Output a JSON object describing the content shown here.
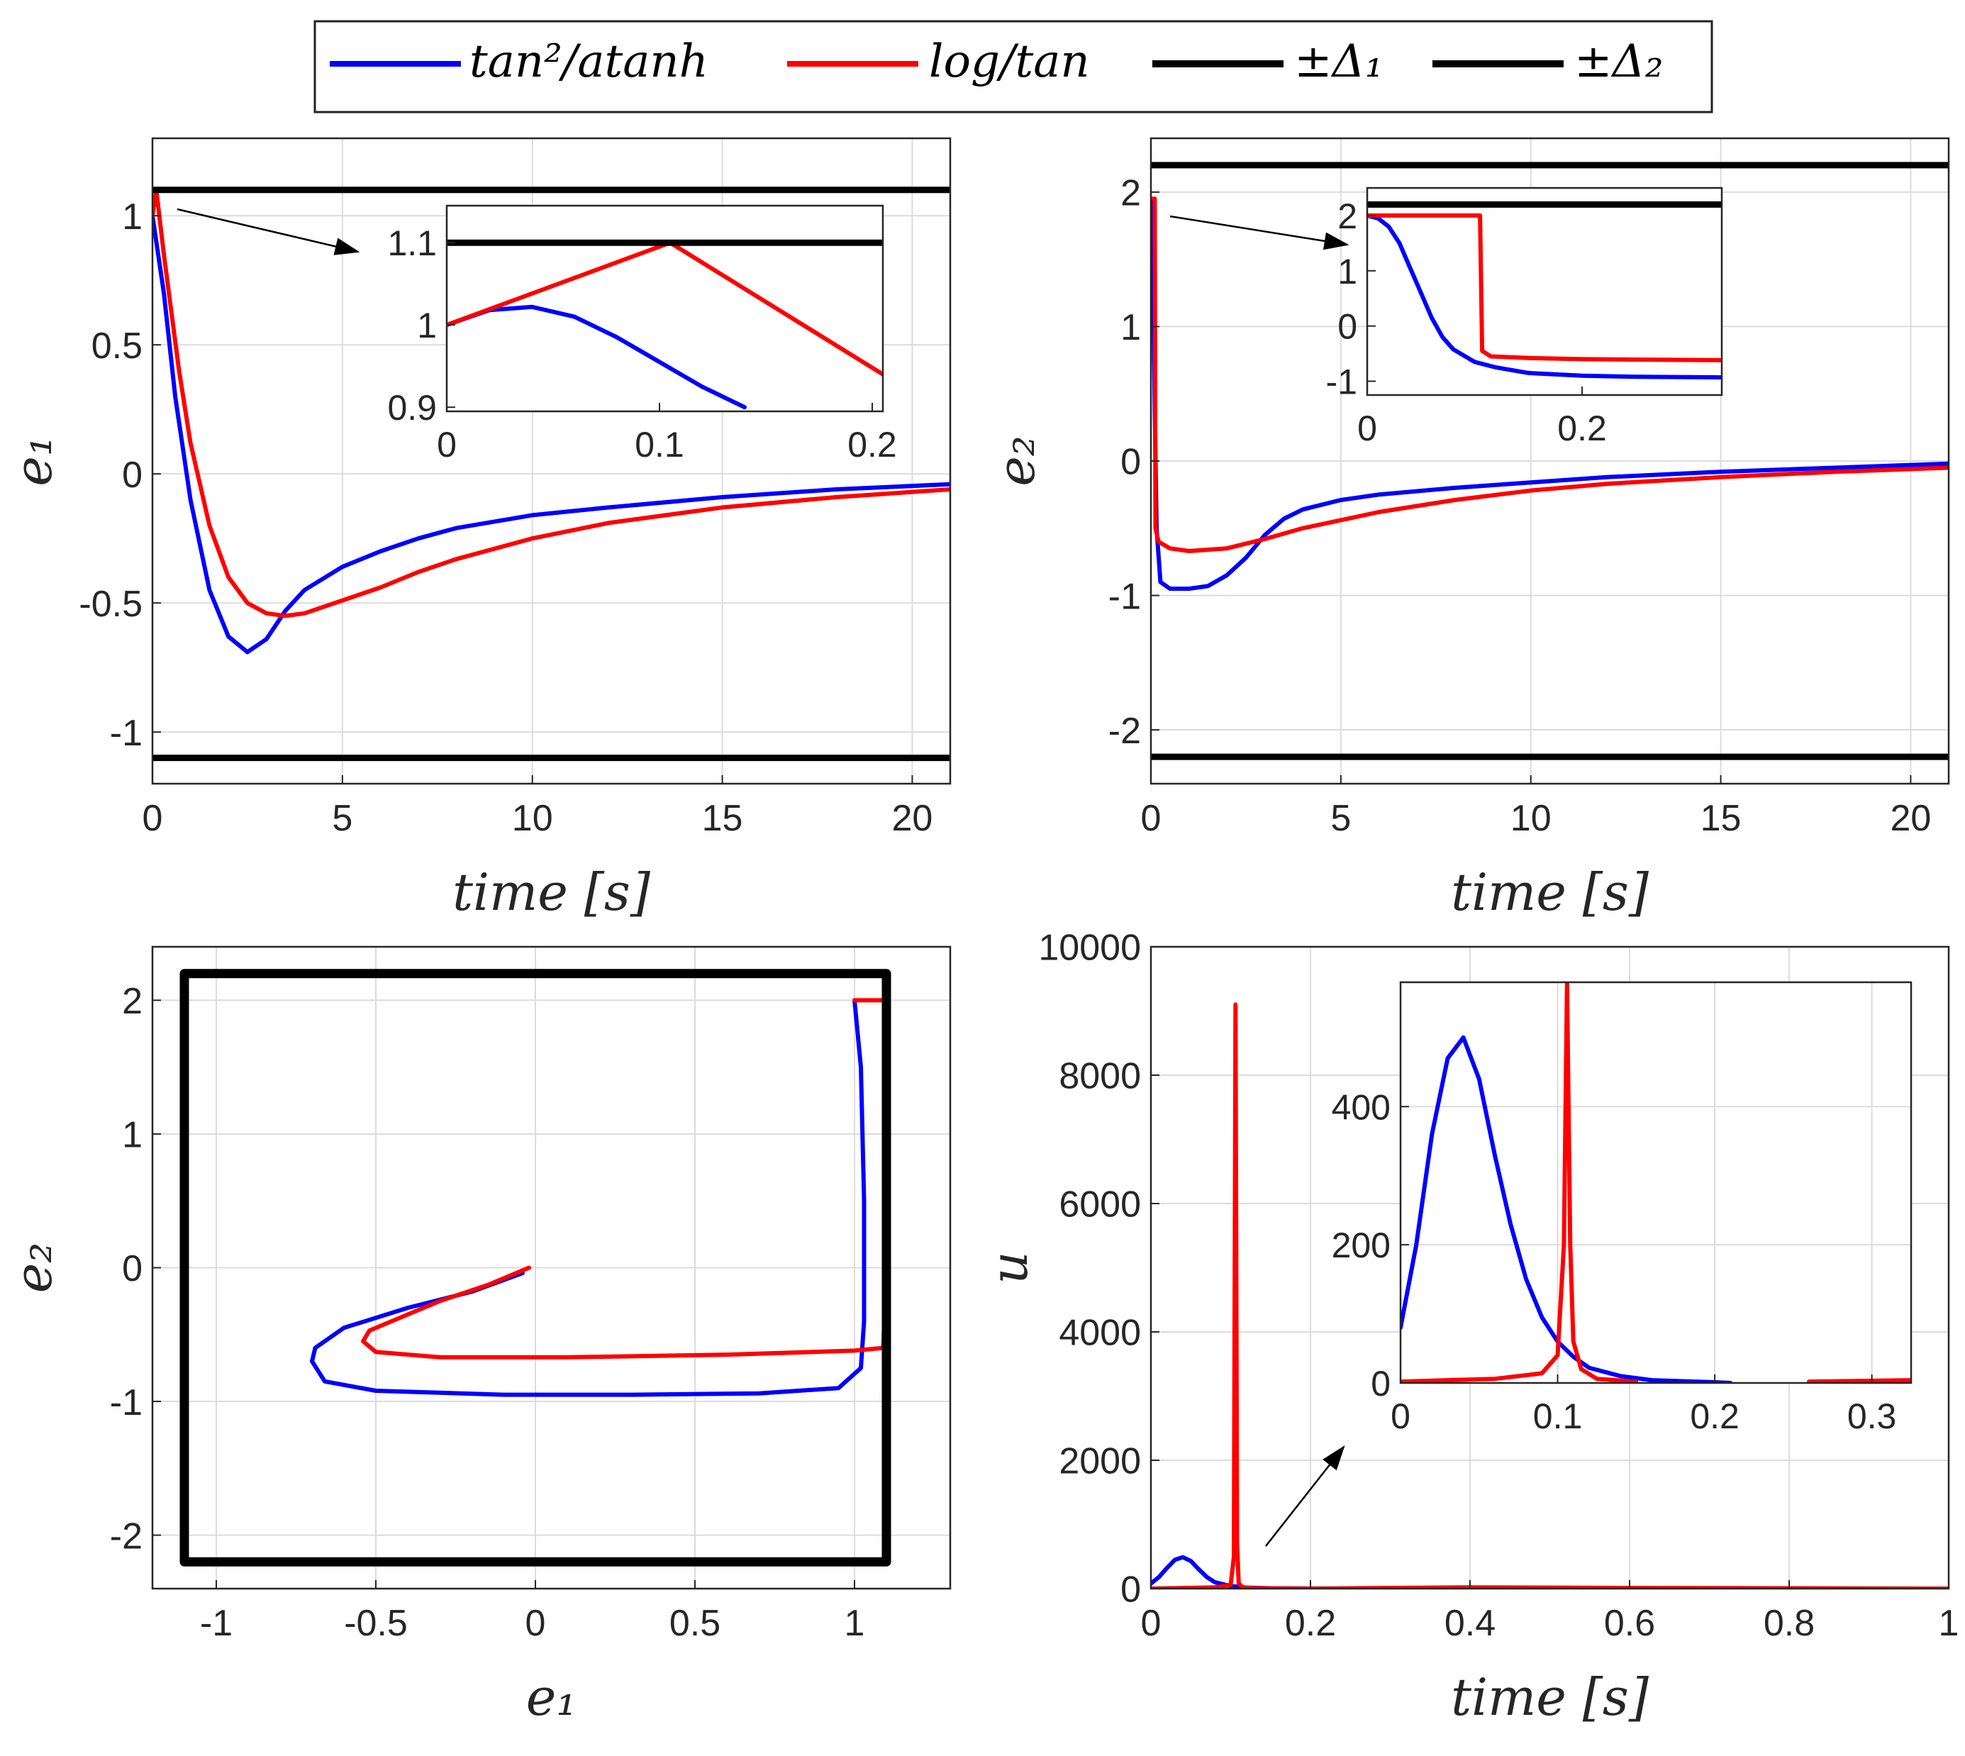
{
  "legend": {
    "entries": [
      {
        "label": "tan²/atanh",
        "color": "#0000ff"
      },
      {
        "label": "log/tan",
        "color": "#ff0000"
      },
      {
        "label": "±Δ₁",
        "color": "#000000"
      },
      {
        "label": "±Δ₂",
        "color": "#000000"
      }
    ]
  },
  "chart_data": [
    {
      "id": "e1",
      "type": "line",
      "title": "",
      "xlabel": "time [s]",
      "ylabel": "e₁",
      "xlim": [
        0,
        21
      ],
      "ylim": [
        -1.2,
        1.3
      ],
      "xticks": [
        0,
        5,
        10,
        15,
        20
      ],
      "xtick_labels": [
        "0",
        "5",
        "10",
        "15",
        "20"
      ],
      "yticks": [
        -1,
        -0.5,
        0,
        0.5,
        1
      ],
      "ytick_labels": [
        "-1",
        "-0.5",
        "0",
        "0.5",
        "1"
      ],
      "grid": true,
      "series": [
        {
          "name": "tan²/atanh",
          "color": "#0000ff",
          "x": [
            0,
            0.3,
            0.6,
            1.0,
            1.5,
            2.0,
            2.5,
            3.0,
            3.5,
            4.0,
            5.0,
            6.0,
            7.0,
            8.0,
            10.0,
            12.0,
            15.0,
            18.0,
            21.0
          ],
          "y": [
            1.0,
            0.7,
            0.3,
            -0.1,
            -0.45,
            -0.63,
            -0.69,
            -0.64,
            -0.53,
            -0.45,
            -0.36,
            -0.3,
            -0.25,
            -0.21,
            -0.16,
            -0.13,
            -0.09,
            -0.06,
            -0.04
          ]
        },
        {
          "name": "log/tan",
          "color": "#ff0000",
          "x": [
            0,
            0.1,
            0.3,
            0.7,
            1.0,
            1.5,
            2.0,
            2.5,
            3.0,
            3.5,
            4.0,
            5.0,
            6.0,
            7.0,
            8.0,
            10.0,
            12.0,
            15.0,
            18.0,
            21.0
          ],
          "y": [
            1.0,
            1.1,
            0.85,
            0.4,
            0.12,
            -0.2,
            -0.4,
            -0.5,
            -0.54,
            -0.55,
            -0.54,
            -0.49,
            -0.44,
            -0.38,
            -0.33,
            -0.25,
            -0.19,
            -0.13,
            -0.09,
            -0.06
          ]
        },
        {
          "name": "+Δ₁",
          "color": "#000000",
          "x": [
            0,
            21
          ],
          "y": [
            1.1,
            1.1
          ]
        },
        {
          "name": "-Δ₁",
          "color": "#000000",
          "x": [
            0,
            21
          ],
          "y": [
            -1.1,
            -1.1
          ]
        }
      ],
      "annotation": "arrow from (0.7, 1.03) to (5.4, 0.87)",
      "inset": {
        "xlim": [
          0,
          0.205
        ],
        "ylim": [
          0.895,
          1.145
        ],
        "xticks": [
          0,
          0.1,
          0.2
        ],
        "xtick_labels": [
          "0",
          "0.1",
          "0.2"
        ],
        "yticks": [
          0.9,
          1,
          1.1
        ],
        "ytick_labels": [
          "0.9",
          "1",
          "1.1"
        ],
        "series": [
          {
            "name": "tan²/atanh",
            "color": "#0000ff",
            "x": [
              0,
              0.02,
              0.04,
              0.06,
              0.08,
              0.1,
              0.12,
              0.14
            ],
            "y": [
              1.0,
              1.018,
              1.022,
              1.01,
              0.985,
              0.955,
              0.925,
              0.9
            ]
          },
          {
            "name": "log/tan",
            "color": "#ff0000",
            "x": [
              0,
              0.105,
              0.205
            ],
            "y": [
              1.0,
              1.1,
              0.94
            ]
          },
          {
            "name": "Δ₁",
            "color": "#000000",
            "x": [
              0,
              0.205
            ],
            "y": [
              1.1,
              1.1
            ]
          }
        ]
      }
    },
    {
      "id": "e2",
      "type": "line",
      "title": "",
      "xlabel": "time [s]",
      "ylabel": "e₂",
      "xlim": [
        0,
        21
      ],
      "ylim": [
        -2.4,
        2.4
      ],
      "xticks": [
        0,
        5,
        10,
        15,
        20
      ],
      "xtick_labels": [
        "0",
        "5",
        "10",
        "15",
        "20"
      ],
      "yticks": [
        -2,
        -1,
        0,
        1,
        2
      ],
      "ytick_labels": [
        "-2",
        "-1",
        "0",
        "1",
        "2"
      ],
      "grid": true,
      "series": [
        {
          "name": "tan²/atanh",
          "color": "#0000ff",
          "x": [
            0,
            0.05,
            0.1,
            0.15,
            0.25,
            0.5,
            1.0,
            1.5,
            2.0,
            2.5,
            3.0,
            3.5,
            4.0,
            5.0,
            6.0,
            8.0,
            10.0,
            12.0,
            15.0,
            18.0,
            21.0
          ],
          "y": [
            1.95,
            1.5,
            0.4,
            -0.5,
            -0.9,
            -0.95,
            -0.95,
            -0.93,
            -0.85,
            -0.72,
            -0.55,
            -0.43,
            -0.36,
            -0.29,
            -0.25,
            -0.2,
            -0.16,
            -0.12,
            -0.08,
            -0.05,
            -0.02
          ]
        },
        {
          "name": "log/tan",
          "color": "#ff0000",
          "x": [
            0,
            0.1,
            0.12,
            0.2,
            0.5,
            1.0,
            2.0,
            3.0,
            4.0,
            6.0,
            8.0,
            10.0,
            12.0,
            15.0,
            18.0,
            21.0
          ],
          "y": [
            1.95,
            1.95,
            -0.5,
            -0.6,
            -0.65,
            -0.67,
            -0.65,
            -0.58,
            -0.5,
            -0.38,
            -0.29,
            -0.22,
            -0.17,
            -0.12,
            -0.08,
            -0.05
          ]
        },
        {
          "name": "+Δ₂",
          "color": "#000000",
          "x": [
            0,
            21
          ],
          "y": [
            2.2,
            2.2
          ]
        },
        {
          "name": "-Δ₂",
          "color": "#000000",
          "x": [
            0,
            21
          ],
          "y": [
            -2.2,
            -2.2
          ]
        }
      ],
      "annotation": "arrow from (0.6, 1.8) to (5.4, 1.65)",
      "inset": {
        "xlim": [
          0,
          0.33
        ],
        "ylim": [
          -1.25,
          2.5
        ],
        "xticks": [
          0,
          0.2
        ],
        "xtick_labels": [
          "0",
          "0.2"
        ],
        "yticks": [
          -1,
          0,
          1,
          2
        ],
        "ytick_labels": [
          "-1",
          "0",
          "1",
          "2"
        ],
        "series": [
          {
            "name": "tan²/atanh",
            "color": "#0000ff",
            "x": [
              0,
              0.01,
              0.02,
              0.03,
              0.04,
              0.05,
              0.06,
              0.07,
              0.08,
              0.1,
              0.12,
              0.15,
              0.2,
              0.25,
              0.33
            ],
            "y": [
              2.0,
              1.95,
              1.8,
              1.5,
              1.05,
              0.6,
              0.15,
              -0.2,
              -0.42,
              -0.65,
              -0.75,
              -0.85,
              -0.9,
              -0.92,
              -0.93
            ]
          },
          {
            "name": "log/tan",
            "color": "#ff0000",
            "x": [
              0,
              0.105,
              0.107,
              0.115,
              0.15,
              0.2,
              0.33
            ],
            "y": [
              2.0,
              2.0,
              -0.45,
              -0.55,
              -0.58,
              -0.6,
              -0.62
            ]
          },
          {
            "name": "Δ₂",
            "color": "#000000",
            "x": [
              0,
              0.33
            ],
            "y": [
              2.2,
              2.2
            ]
          }
        ]
      }
    },
    {
      "id": "phase",
      "type": "line",
      "title": "",
      "xlabel": "e₁",
      "ylabel": "e₂",
      "xlim": [
        -1.2,
        1.3
      ],
      "ylim": [
        -2.4,
        2.4
      ],
      "xticks": [
        -1,
        -0.5,
        0,
        0.5,
        1
      ],
      "xtick_labels": [
        "-1",
        "-0.5",
        "0",
        "0.5",
        "1"
      ],
      "yticks": [
        -2,
        -1,
        0,
        1,
        2
      ],
      "ytick_labels": [
        "-2",
        "-1",
        "0",
        "1",
        "2"
      ],
      "grid": true,
      "series": [
        {
          "name": "tan²/atanh",
          "color": "#0000ff",
          "x": [
            1.0,
            1.02,
            1.03,
            1.03,
            1.02,
            0.95,
            0.7,
            0.3,
            -0.1,
            -0.5,
            -0.66,
            -0.7,
            -0.69,
            -0.6,
            -0.4,
            -0.2,
            -0.04
          ],
          "y": [
            2.0,
            1.5,
            0.5,
            -0.4,
            -0.75,
            -0.9,
            -0.94,
            -0.95,
            -0.95,
            -0.92,
            -0.85,
            -0.7,
            -0.6,
            -0.45,
            -0.3,
            -0.18,
            -0.04
          ]
        },
        {
          "name": "log/tan",
          "color": "#ff0000",
          "x": [
            1.0,
            1.1,
            1.1,
            1.09,
            1.0,
            0.6,
            0.1,
            -0.3,
            -0.5,
            -0.54,
            -0.52,
            -0.45,
            -0.3,
            -0.15,
            -0.02
          ],
          "y": [
            2.0,
            2.0,
            0.0,
            -0.6,
            -0.62,
            -0.65,
            -0.67,
            -0.67,
            -0.63,
            -0.55,
            -0.47,
            -0.4,
            -0.25,
            -0.13,
            0.0
          ]
        },
        {
          "name": "Δ box",
          "color": "#000000",
          "x": [
            -1.1,
            1.1,
            1.1,
            -1.1,
            -1.1
          ],
          "y": [
            2.2,
            2.2,
            -2.2,
            -2.2,
            2.2
          ]
        }
      ]
    },
    {
      "id": "u",
      "type": "line",
      "title": "",
      "xlabel": "time [s]",
      "ylabel": "u",
      "xlim": [
        0,
        1
      ],
      "ylim": [
        0,
        10000
      ],
      "xticks": [
        0,
        0.2,
        0.4,
        0.6,
        0.8,
        1
      ],
      "xtick_labels": [
        "0",
        "0.2",
        "0.4",
        "0.6",
        "0.8",
        "1"
      ],
      "yticks": [
        0,
        2000,
        4000,
        6000,
        8000,
        10000
      ],
      "ytick_labels": [
        "0",
        "2000",
        "4000",
        "6000",
        "8000",
        "10000"
      ],
      "grid": true,
      "series": [
        {
          "name": "tan²/atanh",
          "color": "#0000ff",
          "x": [
            0,
            0.01,
            0.02,
            0.03,
            0.04,
            0.05,
            0.06,
            0.07,
            0.08,
            0.1,
            0.12,
            0.15,
            0.2,
            0.24
          ],
          "y": [
            80,
            180,
            320,
            450,
            490,
            430,
            300,
            180,
            100,
            40,
            15,
            5,
            1,
            0
          ]
        },
        {
          "name": "log/tan",
          "color": "#ff0000",
          "x": [
            0,
            0.08,
            0.1,
            0.104,
            0.106,
            0.108,
            0.11,
            0.115,
            0.13,
            0.2,
            0.4,
            0.6,
            0.8,
            1.0
          ],
          "y": [
            0,
            20,
            60,
            500,
            9100,
            700,
            80,
            20,
            5,
            0,
            20,
            10,
            5,
            0
          ]
        }
      ],
      "annotation": "arrow from (0.06, 700) to (0.1, 2200)",
      "inset": {
        "xlim": [
          0,
          0.325
        ],
        "ylim": [
          0,
          580
        ],
        "xticks": [
          0,
          0.1,
          0.2,
          0.3
        ],
        "xtick_labels": [
          "0",
          "0.1",
          "0.2",
          "0.3"
        ],
        "yticks": [
          0,
          200,
          400
        ],
        "ytick_labels": [
          "0",
          "200",
          "400"
        ],
        "series": [
          {
            "name": "tan²/atanh",
            "color": "#0000ff",
            "x": [
              0,
              0.01,
              0.02,
              0.03,
              0.04,
              0.05,
              0.06,
              0.07,
              0.08,
              0.09,
              0.1,
              0.11,
              0.12,
              0.14,
              0.16,
              0.2,
              0.21
            ],
            "y": [
              80,
              200,
              360,
              470,
              500,
              440,
              330,
              230,
              150,
              95,
              60,
              38,
              22,
              10,
              4,
              1,
              0
            ]
          },
          {
            "name": "log/tan",
            "color": "#ff0000",
            "x": [
              0,
              0.06,
              0.09,
              0.1,
              0.104,
              0.106,
              0.108,
              0.11,
              0.115,
              0.125,
              0.15
            ],
            "y": [
              2,
              6,
              14,
              40,
              200,
              580,
              200,
              60,
              20,
              6,
              2
            ]
          },
          {
            "name": "log/tan (tail)",
            "color": "#ff0000",
            "x": [
              0.26,
              0.325
            ],
            "y": [
              2,
              4
            ]
          }
        ]
      }
    }
  ]
}
